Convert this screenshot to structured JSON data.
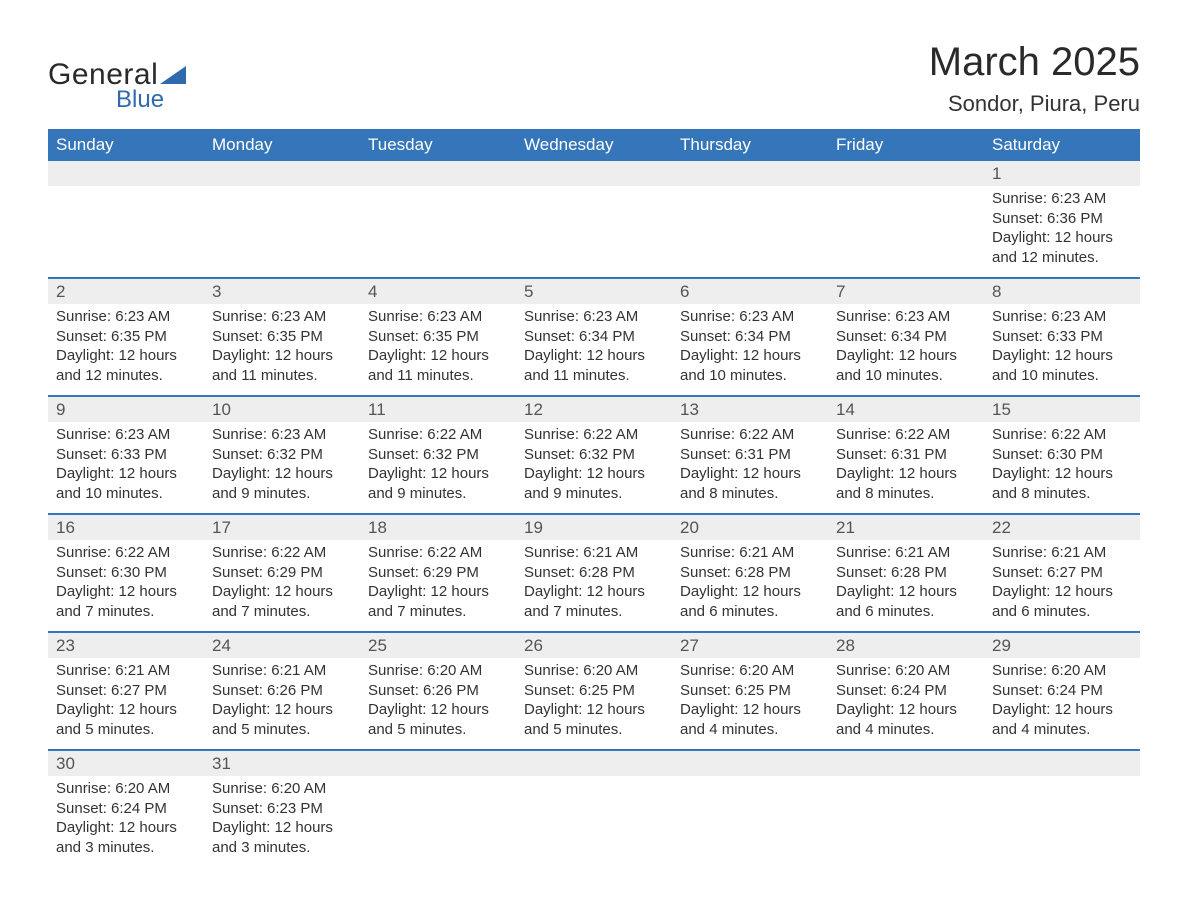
{
  "logo": {
    "word1": "General",
    "word2": "Blue",
    "triangle_color": "#2f6aac"
  },
  "title": "March 2025",
  "location": "Sondor, Piura, Peru",
  "colors": {
    "header_bg": "#3575b9",
    "header_text": "#ffffff",
    "daynum_bg": "#eeeeee",
    "divider": "#3575b9",
    "text": "#333333"
  },
  "fonts": {
    "title_size_pt": 30,
    "location_size_pt": 17,
    "dayheader_size_pt": 13,
    "body_size_pt": 11
  },
  "day_headers": [
    "Sunday",
    "Monday",
    "Tuesday",
    "Wednesday",
    "Thursday",
    "Friday",
    "Saturday"
  ],
  "weeks": [
    [
      null,
      null,
      null,
      null,
      null,
      null,
      {
        "n": "1",
        "sr": "Sunrise: 6:23 AM",
        "ss": "Sunset: 6:36 PM",
        "dl": "Daylight: 12 hours and 12 minutes."
      }
    ],
    [
      {
        "n": "2",
        "sr": "Sunrise: 6:23 AM",
        "ss": "Sunset: 6:35 PM",
        "dl": "Daylight: 12 hours and 12 minutes."
      },
      {
        "n": "3",
        "sr": "Sunrise: 6:23 AM",
        "ss": "Sunset: 6:35 PM",
        "dl": "Daylight: 12 hours and 11 minutes."
      },
      {
        "n": "4",
        "sr": "Sunrise: 6:23 AM",
        "ss": "Sunset: 6:35 PM",
        "dl": "Daylight: 12 hours and 11 minutes."
      },
      {
        "n": "5",
        "sr": "Sunrise: 6:23 AM",
        "ss": "Sunset: 6:34 PM",
        "dl": "Daylight: 12 hours and 11 minutes."
      },
      {
        "n": "6",
        "sr": "Sunrise: 6:23 AM",
        "ss": "Sunset: 6:34 PM",
        "dl": "Daylight: 12 hours and 10 minutes."
      },
      {
        "n": "7",
        "sr": "Sunrise: 6:23 AM",
        "ss": "Sunset: 6:34 PM",
        "dl": "Daylight: 12 hours and 10 minutes."
      },
      {
        "n": "8",
        "sr": "Sunrise: 6:23 AM",
        "ss": "Sunset: 6:33 PM",
        "dl": "Daylight: 12 hours and 10 minutes."
      }
    ],
    [
      {
        "n": "9",
        "sr": "Sunrise: 6:23 AM",
        "ss": "Sunset: 6:33 PM",
        "dl": "Daylight: 12 hours and 10 minutes."
      },
      {
        "n": "10",
        "sr": "Sunrise: 6:23 AM",
        "ss": "Sunset: 6:32 PM",
        "dl": "Daylight: 12 hours and 9 minutes."
      },
      {
        "n": "11",
        "sr": "Sunrise: 6:22 AM",
        "ss": "Sunset: 6:32 PM",
        "dl": "Daylight: 12 hours and 9 minutes."
      },
      {
        "n": "12",
        "sr": "Sunrise: 6:22 AM",
        "ss": "Sunset: 6:32 PM",
        "dl": "Daylight: 12 hours and 9 minutes."
      },
      {
        "n": "13",
        "sr": "Sunrise: 6:22 AM",
        "ss": "Sunset: 6:31 PM",
        "dl": "Daylight: 12 hours and 8 minutes."
      },
      {
        "n": "14",
        "sr": "Sunrise: 6:22 AM",
        "ss": "Sunset: 6:31 PM",
        "dl": "Daylight: 12 hours and 8 minutes."
      },
      {
        "n": "15",
        "sr": "Sunrise: 6:22 AM",
        "ss": "Sunset: 6:30 PM",
        "dl": "Daylight: 12 hours and 8 minutes."
      }
    ],
    [
      {
        "n": "16",
        "sr": "Sunrise: 6:22 AM",
        "ss": "Sunset: 6:30 PM",
        "dl": "Daylight: 12 hours and 7 minutes."
      },
      {
        "n": "17",
        "sr": "Sunrise: 6:22 AM",
        "ss": "Sunset: 6:29 PM",
        "dl": "Daylight: 12 hours and 7 minutes."
      },
      {
        "n": "18",
        "sr": "Sunrise: 6:22 AM",
        "ss": "Sunset: 6:29 PM",
        "dl": "Daylight: 12 hours and 7 minutes."
      },
      {
        "n": "19",
        "sr": "Sunrise: 6:21 AM",
        "ss": "Sunset: 6:28 PM",
        "dl": "Daylight: 12 hours and 7 minutes."
      },
      {
        "n": "20",
        "sr": "Sunrise: 6:21 AM",
        "ss": "Sunset: 6:28 PM",
        "dl": "Daylight: 12 hours and 6 minutes."
      },
      {
        "n": "21",
        "sr": "Sunrise: 6:21 AM",
        "ss": "Sunset: 6:28 PM",
        "dl": "Daylight: 12 hours and 6 minutes."
      },
      {
        "n": "22",
        "sr": "Sunrise: 6:21 AM",
        "ss": "Sunset: 6:27 PM",
        "dl": "Daylight: 12 hours and 6 minutes."
      }
    ],
    [
      {
        "n": "23",
        "sr": "Sunrise: 6:21 AM",
        "ss": "Sunset: 6:27 PM",
        "dl": "Daylight: 12 hours and 5 minutes."
      },
      {
        "n": "24",
        "sr": "Sunrise: 6:21 AM",
        "ss": "Sunset: 6:26 PM",
        "dl": "Daylight: 12 hours and 5 minutes."
      },
      {
        "n": "25",
        "sr": "Sunrise: 6:20 AM",
        "ss": "Sunset: 6:26 PM",
        "dl": "Daylight: 12 hours and 5 minutes."
      },
      {
        "n": "26",
        "sr": "Sunrise: 6:20 AM",
        "ss": "Sunset: 6:25 PM",
        "dl": "Daylight: 12 hours and 5 minutes."
      },
      {
        "n": "27",
        "sr": "Sunrise: 6:20 AM",
        "ss": "Sunset: 6:25 PM",
        "dl": "Daylight: 12 hours and 4 minutes."
      },
      {
        "n": "28",
        "sr": "Sunrise: 6:20 AM",
        "ss": "Sunset: 6:24 PM",
        "dl": "Daylight: 12 hours and 4 minutes."
      },
      {
        "n": "29",
        "sr": "Sunrise: 6:20 AM",
        "ss": "Sunset: 6:24 PM",
        "dl": "Daylight: 12 hours and 4 minutes."
      }
    ],
    [
      {
        "n": "30",
        "sr": "Sunrise: 6:20 AM",
        "ss": "Sunset: 6:24 PM",
        "dl": "Daylight: 12 hours and 3 minutes."
      },
      {
        "n": "31",
        "sr": "Sunrise: 6:20 AM",
        "ss": "Sunset: 6:23 PM",
        "dl": "Daylight: 12 hours and 3 minutes."
      },
      null,
      null,
      null,
      null,
      null
    ]
  ]
}
